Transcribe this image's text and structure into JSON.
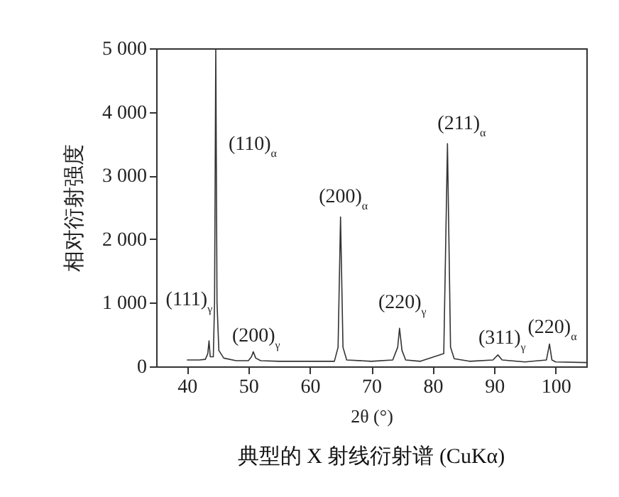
{
  "chart_data": {
    "type": "line",
    "title": "典型的 X 射线衍射谱 (CuKα)",
    "xlabel": "2θ (°)",
    "ylabel": "相对衍射强度",
    "x": [
      40,
      42,
      43,
      43.4,
      43.6,
      43.8,
      44.3,
      44.5,
      44.7,
      44.9,
      45.2,
      46,
      48,
      50,
      50.5,
      50.8,
      51.2,
      52,
      55,
      60,
      64,
      64.6,
      65,
      65.4,
      66,
      70,
      73.5,
      74.3,
      74.6,
      75,
      75.6,
      78,
      81.8,
      82.4,
      82.9,
      83.5,
      86,
      89.8,
      90.6,
      91.3,
      95,
      98.5,
      99,
      99.4,
      100,
      105
    ],
    "series": [
      {
        "color": "#333333",
        "values": [
          100,
          100,
          110,
          200,
          400,
          150,
          150,
          1000,
          5000,
          1000,
          250,
          130,
          90,
          90,
          150,
          230,
          130,
          90,
          80,
          80,
          80,
          300,
          2350,
          300,
          100,
          80,
          100,
          300,
          600,
          250,
          100,
          80,
          200,
          3500,
          300,
          120,
          80,
          100,
          180,
          100,
          70,
          100,
          350,
          100,
          70,
          60
        ]
      }
    ],
    "xlim": [
      35,
      105
    ],
    "ylim": [
      0,
      5000
    ],
    "xticks": [
      40,
      50,
      60,
      70,
      80,
      90,
      100
    ],
    "yticks": [
      0,
      {
        "value": 1000,
        "label": "1 000"
      },
      {
        "value": 2000,
        "label": "2 000"
      },
      {
        "value": 3000,
        "label": "3 000"
      },
      {
        "value": 4000,
        "label": "4 000"
      },
      {
        "value": 5000,
        "label": "5 000"
      }
    ],
    "grid": false,
    "marker": "none",
    "line_style": "solid",
    "annotations": [
      {
        "text": "(111)$_{γ}$",
        "x": 43.6,
        "y": 400
      },
      {
        "text": "(110)$_{α}$",
        "x": 44.7,
        "y": 3490
      },
      {
        "text": "(200)$_{γ}$",
        "x": 50.8,
        "y": 230
      },
      {
        "text": "(200)$_{α}$",
        "x": 65,
        "y": 2350
      },
      {
        "text": "(220)$_{γ}$",
        "x": 74.6,
        "y": 600
      },
      {
        "text": "(211)$_{α}$",
        "x": 82.4,
        "y": 3500
      },
      {
        "text": "(311)$_{γ}$",
        "x": 90.6,
        "y": 180
      },
      {
        "text": "(220)$_{α}$",
        "x": 99,
        "y": 350
      }
    ]
  }
}
